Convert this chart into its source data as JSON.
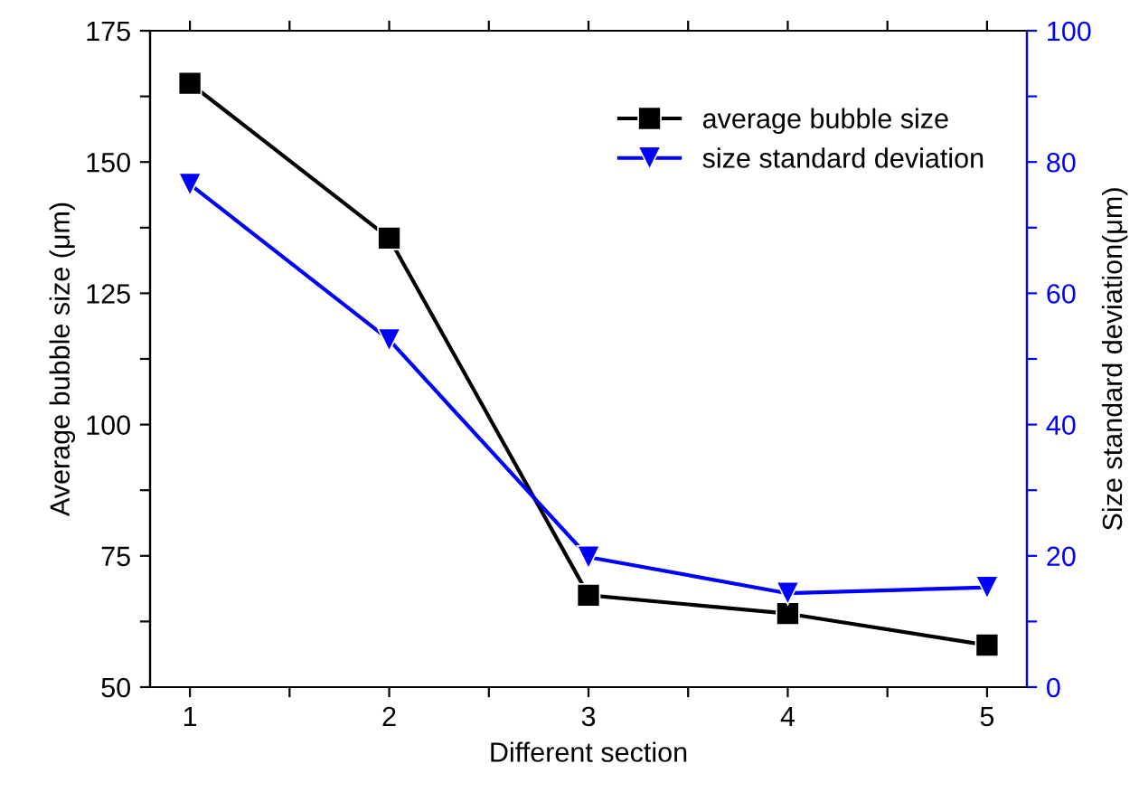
{
  "chart_data": {
    "type": "line",
    "xlabel": "Different section",
    "ylabel": "Average bubble size (μm)",
    "y2label": "Size standard deviation(μm)",
    "x": [
      1,
      2,
      3,
      4,
      5
    ],
    "xlim": [
      0.8,
      5.2
    ],
    "xticks": [
      1,
      {
        "value": 1.5,
        "label": null
      },
      2,
      {
        "value": 2.5,
        "label": null
      },
      3,
      {
        "value": 3.5,
        "label": null
      },
      4,
      {
        "value": 4.5,
        "label": null
      },
      5
    ],
    "ylim": [
      50,
      175
    ],
    "yticks": [
      50,
      {
        "value": 62.5,
        "label": null
      },
      75,
      {
        "value": 87.5,
        "label": null
      },
      100,
      {
        "value": 112.5,
        "label": null
      },
      125,
      {
        "value": 137.5,
        "label": null
      },
      150,
      {
        "value": 162.5,
        "label": null
      },
      175
    ],
    "y2lim": [
      0,
      100
    ],
    "y2ticks": [
      0,
      {
        "value": 10,
        "label": null
      },
      20,
      {
        "value": 30,
        "label": null
      },
      40,
      {
        "value": 50,
        "label": null
      },
      60,
      {
        "value": 70,
        "label": null
      },
      80,
      {
        "value": 90,
        "label": null
      },
      100
    ],
    "series": [
      {
        "name": "average bubble size",
        "color": "#000000",
        "marker": "square",
        "values": [
          165,
          135.5,
          67.5,
          64,
          58
        ]
      },
      {
        "name": "size standard deviation",
        "color": "#0000ff",
        "marker": "triangle",
        "axis": "y2",
        "values": [
          76.6,
          52.9,
          19.8,
          14.3,
          15.2
        ]
      }
    ],
    "legend": "top right",
    "grid": false,
    "line_style": "solid"
  }
}
